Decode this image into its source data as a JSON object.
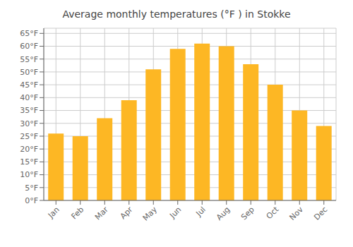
{
  "chart_data": {
    "type": "bar",
    "title": "Average monthly temperatures (°F ) in Stokke",
    "categories": [
      "Jan",
      "Feb",
      "Mar",
      "Apr",
      "May",
      "Jun",
      "Jul",
      "Aug",
      "Sep",
      "Oct",
      "Nov",
      "Dec"
    ],
    "values": [
      26,
      25,
      32,
      39,
      51,
      59,
      61,
      60,
      53,
      45,
      35,
      29
    ],
    "color": "#FDB724",
    "ylim": [
      0,
      67
    ],
    "yticks": [
      {
        "value": 0,
        "label": "0°F"
      },
      {
        "value": 5,
        "label": "5°F"
      },
      {
        "value": 10,
        "label": "10°F"
      },
      {
        "value": 15,
        "label": "15°F"
      },
      {
        "value": 20,
        "label": "20°F"
      },
      {
        "value": 25,
        "label": "25°F"
      },
      {
        "value": 30,
        "label": "30°F"
      },
      {
        "value": 35,
        "label": "35°F"
      },
      {
        "value": 40,
        "label": "40°F"
      },
      {
        "value": 45,
        "label": "45°F"
      },
      {
        "value": 50,
        "label": "50°F"
      },
      {
        "value": 55,
        "label": "55°F"
      },
      {
        "value": 60,
        "label": "60°F"
      },
      {
        "value": 65,
        "label": "65°F"
      }
    ],
    "grid": true
  }
}
